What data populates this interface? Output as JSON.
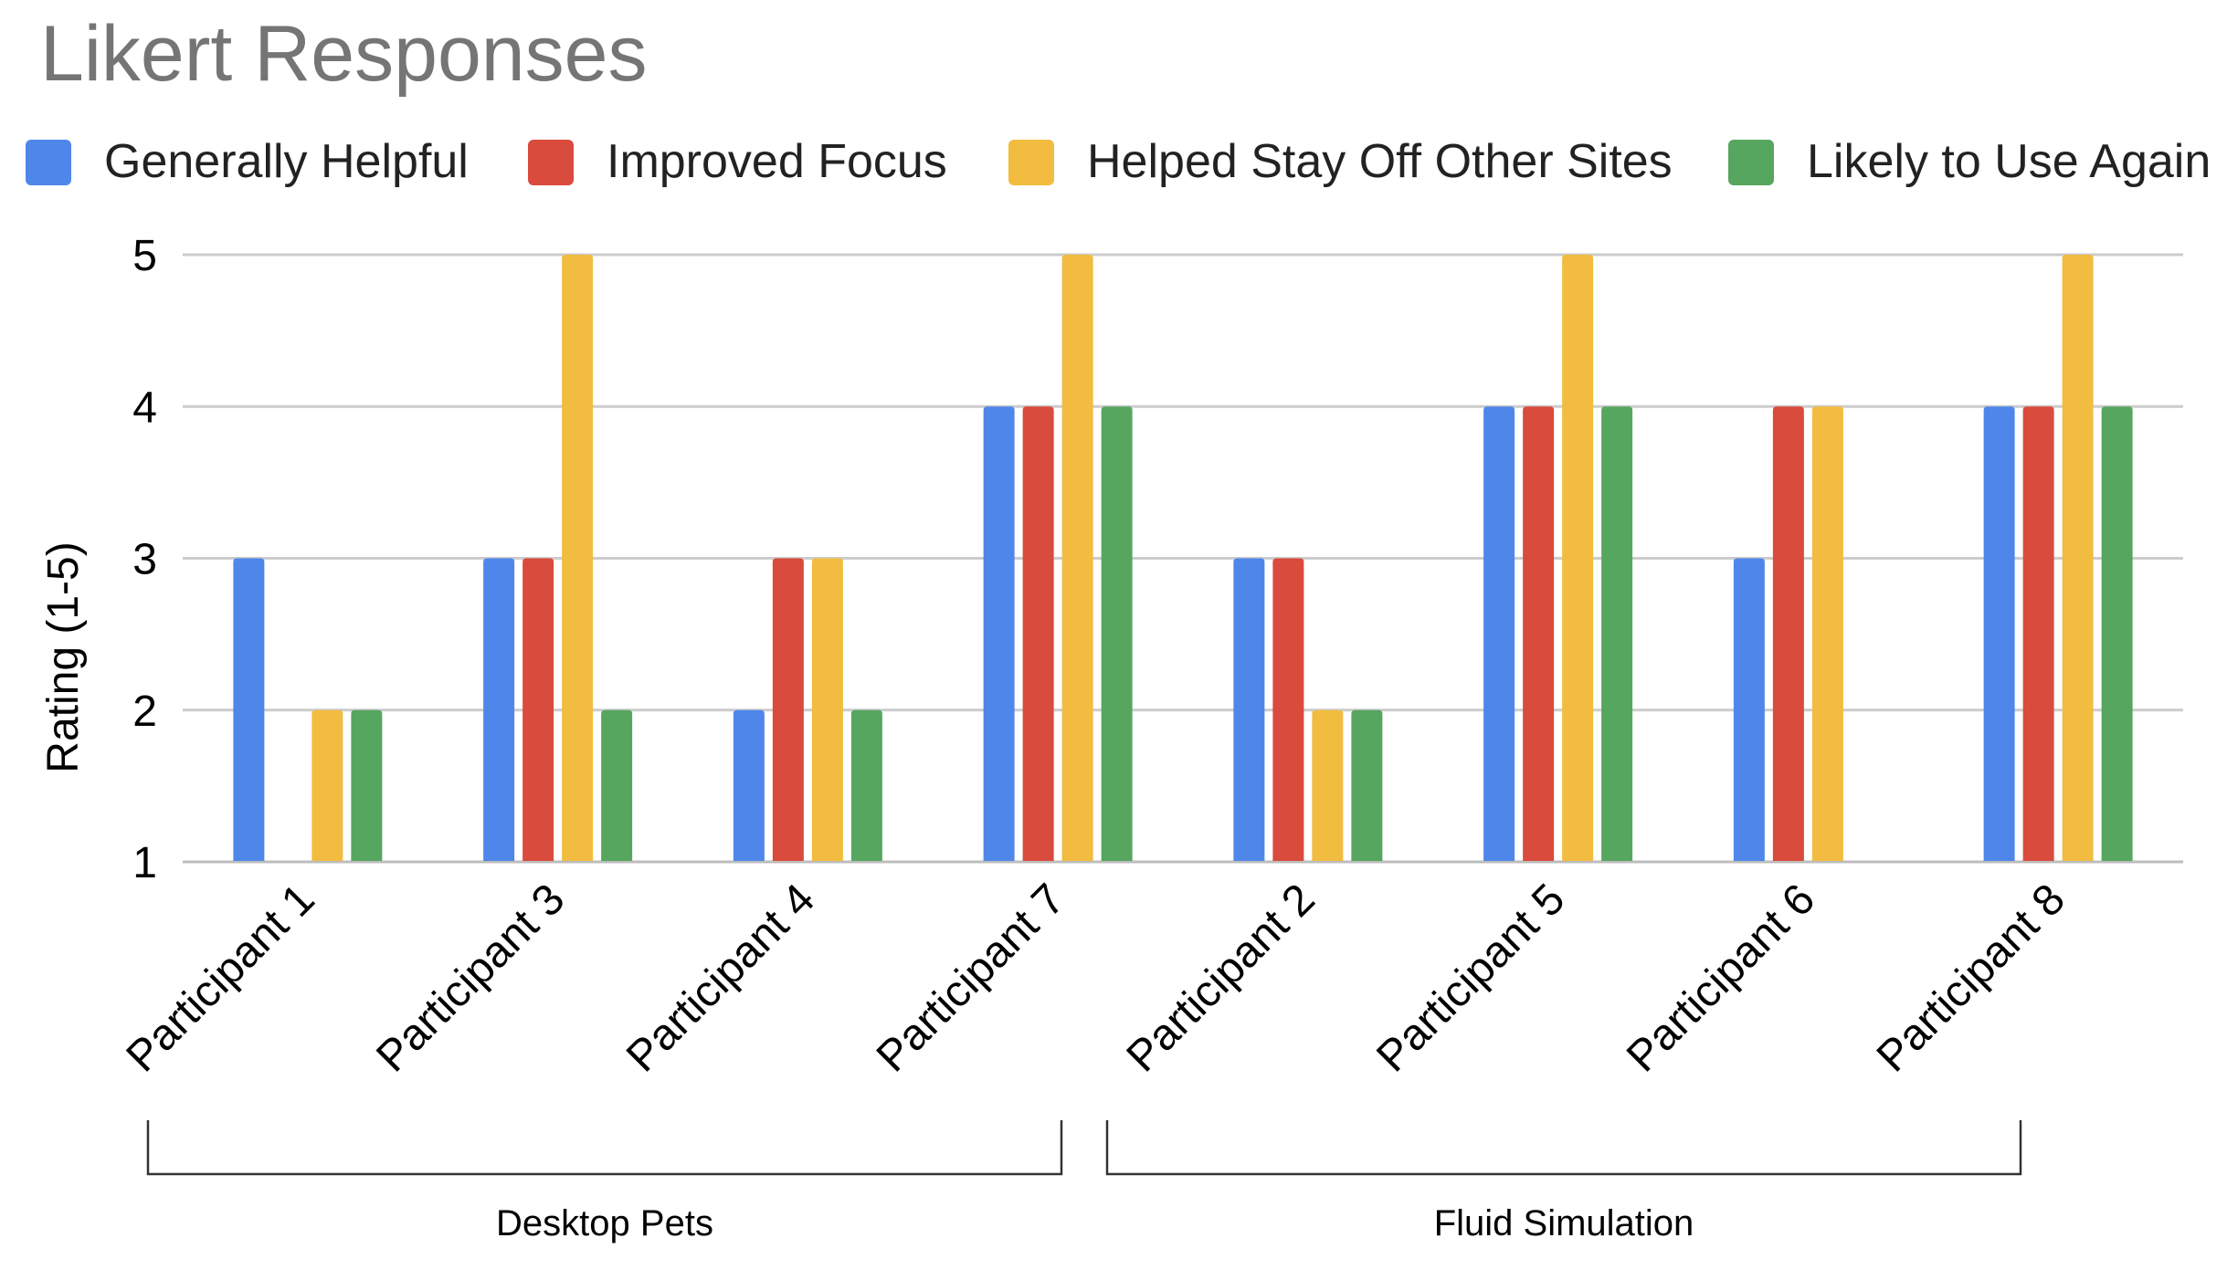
{
  "chart_data": {
    "type": "bar",
    "title": "Likert Responses",
    "xlabel": "",
    "ylabel": "Rating (1-5)",
    "ylim": [
      1,
      5
    ],
    "yticks": [
      1,
      2,
      3,
      4,
      5
    ],
    "grid": true,
    "legend_position": "top",
    "categories": [
      "Participant 1",
      "Participant 3",
      "Participant 4",
      "Participant 7",
      "Participant 2",
      "Participant 5",
      "Participant 6",
      "Participant 8"
    ],
    "series": [
      {
        "name": "Generally Helpful",
        "color": "#4f86ea",
        "values": [
          3,
          3,
          2,
          4,
          3,
          4,
          3,
          4
        ]
      },
      {
        "name": "Improved Focus",
        "color": "#d94b3c",
        "values": [
          1,
          3,
          3,
          4,
          3,
          4,
          4,
          4
        ]
      },
      {
        "name": "Helped Stay Off Other Sites",
        "color": "#f1bc40",
        "values": [
          2,
          5,
          3,
          5,
          2,
          5,
          4,
          5
        ]
      },
      {
        "name": "Likely to Use Again",
        "color": "#56a660",
        "values": [
          2,
          2,
          2,
          4,
          2,
          4,
          1,
          4
        ]
      }
    ],
    "groups": [
      {
        "label": "Desktop Pets",
        "categories": [
          "Participant 1",
          "Participant 3",
          "Participant 4",
          "Participant 7"
        ]
      },
      {
        "label": "Fluid Simulation",
        "categories": [
          "Participant 2",
          "Participant 5",
          "Participant 6",
          "Participant 8"
        ]
      }
    ]
  }
}
